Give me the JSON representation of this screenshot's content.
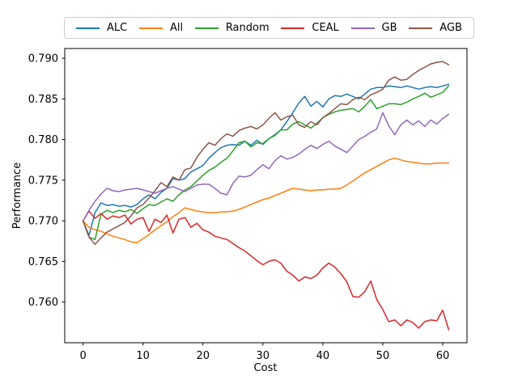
{
  "chart_data": {
    "type": "line",
    "title": "",
    "xlabel": "Cost",
    "ylabel": "Performance",
    "grid": false,
    "legend_position": "top-horizontal-framed",
    "xlim": [
      -3.05,
      64.05
    ],
    "ylim": [
      0.755,
      0.7912
    ],
    "x_ticks": [
      0,
      10,
      20,
      30,
      40,
      50,
      60
    ],
    "x_tick_labels": [
      "0",
      "10",
      "20",
      "30",
      "40",
      "50",
      "60"
    ],
    "y_ticks": [
      0.76,
      0.765,
      0.77,
      0.775,
      0.78,
      0.785,
      0.79
    ],
    "y_tick_labels": [
      "0.760",
      "0.765",
      "0.770",
      "0.775",
      "0.780",
      "0.785",
      "0.790"
    ],
    "x": [
      0,
      1,
      2,
      3,
      4,
      5,
      6,
      7,
      8,
      9,
      10,
      11,
      12,
      13,
      14,
      15,
      16,
      17,
      18,
      19,
      20,
      21,
      22,
      23,
      24,
      25,
      26,
      27,
      28,
      29,
      30,
      31,
      32,
      33,
      34,
      35,
      36,
      37,
      38,
      39,
      40,
      41,
      42,
      43,
      44,
      45,
      46,
      47,
      48,
      49,
      50,
      51,
      52,
      53,
      54,
      55,
      56,
      57,
      58,
      59,
      60,
      61
    ],
    "series": [
      {
        "name": "ALC",
        "color": "#1f77b4",
        "values": [
          0.77,
          0.7682,
          0.771,
          0.7722,
          0.7719,
          0.772,
          0.7718,
          0.7719,
          0.7717,
          0.772,
          0.7727,
          0.7732,
          0.7727,
          0.7735,
          0.774,
          0.7752,
          0.775,
          0.7752,
          0.776,
          0.7764,
          0.7768,
          0.7777,
          0.7784,
          0.779,
          0.7793,
          0.7794,
          0.7793,
          0.7798,
          0.7793,
          0.7799,
          0.7794,
          0.7801,
          0.7806,
          0.7812,
          0.7822,
          0.7833,
          0.7845,
          0.7853,
          0.7841,
          0.7847,
          0.784,
          0.785,
          0.7854,
          0.7853,
          0.7856,
          0.7853,
          0.785,
          0.7856,
          0.7862,
          0.7864,
          0.7864,
          0.7866,
          0.7865,
          0.7864,
          0.7866,
          0.7864,
          0.7862,
          0.7864,
          0.7865,
          0.7864,
          0.7866,
          0.7868
        ]
      },
      {
        "name": "All",
        "color": "#ff7f0e",
        "values": [
          0.77,
          0.7692,
          0.7689,
          0.7687,
          0.7684,
          0.7681,
          0.7679,
          0.7677,
          0.7674,
          0.7673,
          0.7678,
          0.7683,
          0.7689,
          0.7694,
          0.7699,
          0.7705,
          0.771,
          0.7716,
          0.7714,
          0.7712,
          0.7711,
          0.771,
          0.771,
          0.7711,
          0.7711,
          0.7712,
          0.7714,
          0.7717,
          0.772,
          0.7723,
          0.7726,
          0.7728,
          0.7731,
          0.7734,
          0.7737,
          0.774,
          0.7739,
          0.7738,
          0.7737,
          0.7738,
          0.7738,
          0.7739,
          0.7739,
          0.774,
          0.7744,
          0.7749,
          0.7754,
          0.7759,
          0.7763,
          0.7767,
          0.7771,
          0.7775,
          0.7777,
          0.7775,
          0.7773,
          0.7772,
          0.7771,
          0.777,
          0.777,
          0.7771,
          0.7771,
          0.7771
        ]
      },
      {
        "name": "Random",
        "color": "#2ca02c",
        "values": [
          0.77,
          0.768,
          0.7677,
          0.7708,
          0.7713,
          0.771,
          0.7713,
          0.7711,
          0.7714,
          0.7709,
          0.7715,
          0.772,
          0.7719,
          0.7723,
          0.7727,
          0.7724,
          0.7732,
          0.7738,
          0.7742,
          0.7749,
          0.7756,
          0.7762,
          0.7766,
          0.7772,
          0.7777,
          0.7786,
          0.7796,
          0.7798,
          0.7791,
          0.7796,
          0.7795,
          0.7801,
          0.7805,
          0.7812,
          0.7812,
          0.7819,
          0.7822,
          0.7818,
          0.7814,
          0.782,
          0.7827,
          0.7831,
          0.7834,
          0.7836,
          0.7837,
          0.7838,
          0.7834,
          0.7841,
          0.7849,
          0.7838,
          0.7841,
          0.7844,
          0.7844,
          0.7843,
          0.7846,
          0.785,
          0.7853,
          0.7857,
          0.7852,
          0.7855,
          0.7858,
          0.7866
        ]
      },
      {
        "name": "CEAL",
        "color": "#d62728",
        "values": [
          0.77,
          0.7712,
          0.7703,
          0.7709,
          0.7702,
          0.7706,
          0.7704,
          0.7707,
          0.7696,
          0.7702,
          0.7704,
          0.7687,
          0.7702,
          0.7698,
          0.7707,
          0.7685,
          0.7702,
          0.7704,
          0.7692,
          0.7697,
          0.7689,
          0.7686,
          0.7681,
          0.7679,
          0.7677,
          0.7672,
          0.7667,
          0.7663,
          0.7657,
          0.7651,
          0.7646,
          0.765,
          0.7652,
          0.7648,
          0.7638,
          0.7633,
          0.7626,
          0.7631,
          0.7629,
          0.7633,
          0.7642,
          0.7648,
          0.7643,
          0.7635,
          0.7625,
          0.7607,
          0.7606,
          0.7613,
          0.7626,
          0.7603,
          0.7591,
          0.7576,
          0.7578,
          0.7571,
          0.7578,
          0.7575,
          0.7568,
          0.7576,
          0.7578,
          0.7577,
          0.759,
          0.7566
        ]
      },
      {
        "name": "GB",
        "color": "#9467bd",
        "values": [
          0.77,
          0.7713,
          0.7724,
          0.7733,
          0.774,
          0.7737,
          0.7736,
          0.7738,
          0.7739,
          0.774,
          0.7738,
          0.7736,
          0.7734,
          0.7737,
          0.774,
          0.7742,
          0.7739,
          0.7736,
          0.774,
          0.7744,
          0.7745,
          0.7745,
          0.774,
          0.7734,
          0.7732,
          0.7746,
          0.7755,
          0.7754,
          0.7756,
          0.7763,
          0.7769,
          0.7764,
          0.7774,
          0.778,
          0.7776,
          0.7778,
          0.7782,
          0.7788,
          0.7793,
          0.7789,
          0.7794,
          0.7798,
          0.7792,
          0.7788,
          0.7784,
          0.7792,
          0.78,
          0.7804,
          0.7809,
          0.7813,
          0.7833,
          0.7817,
          0.7806,
          0.7818,
          0.7824,
          0.7818,
          0.7823,
          0.7816,
          0.7824,
          0.7819,
          0.7826,
          0.7831
        ]
      },
      {
        "name": "AGB",
        "color": "#8c564b",
        "values": [
          0.77,
          0.768,
          0.7671,
          0.7679,
          0.7686,
          0.769,
          0.7694,
          0.7698,
          0.7706,
          0.7716,
          0.772,
          0.7728,
          0.7737,
          0.7747,
          0.7742,
          0.7754,
          0.775,
          0.7763,
          0.7765,
          0.7778,
          0.7788,
          0.7796,
          0.7793,
          0.7801,
          0.7807,
          0.7804,
          0.7811,
          0.7814,
          0.7816,
          0.7813,
          0.7818,
          0.7826,
          0.7833,
          0.7824,
          0.7828,
          0.783,
          0.7818,
          0.7815,
          0.7822,
          0.7818,
          0.7827,
          0.7832,
          0.7838,
          0.7844,
          0.7843,
          0.7849,
          0.7852,
          0.7849,
          0.7855,
          0.7858,
          0.7862,
          0.7873,
          0.7877,
          0.7873,
          0.7874,
          0.788,
          0.7885,
          0.7889,
          0.7893,
          0.7895,
          0.7896,
          0.7892
        ]
      }
    ]
  }
}
